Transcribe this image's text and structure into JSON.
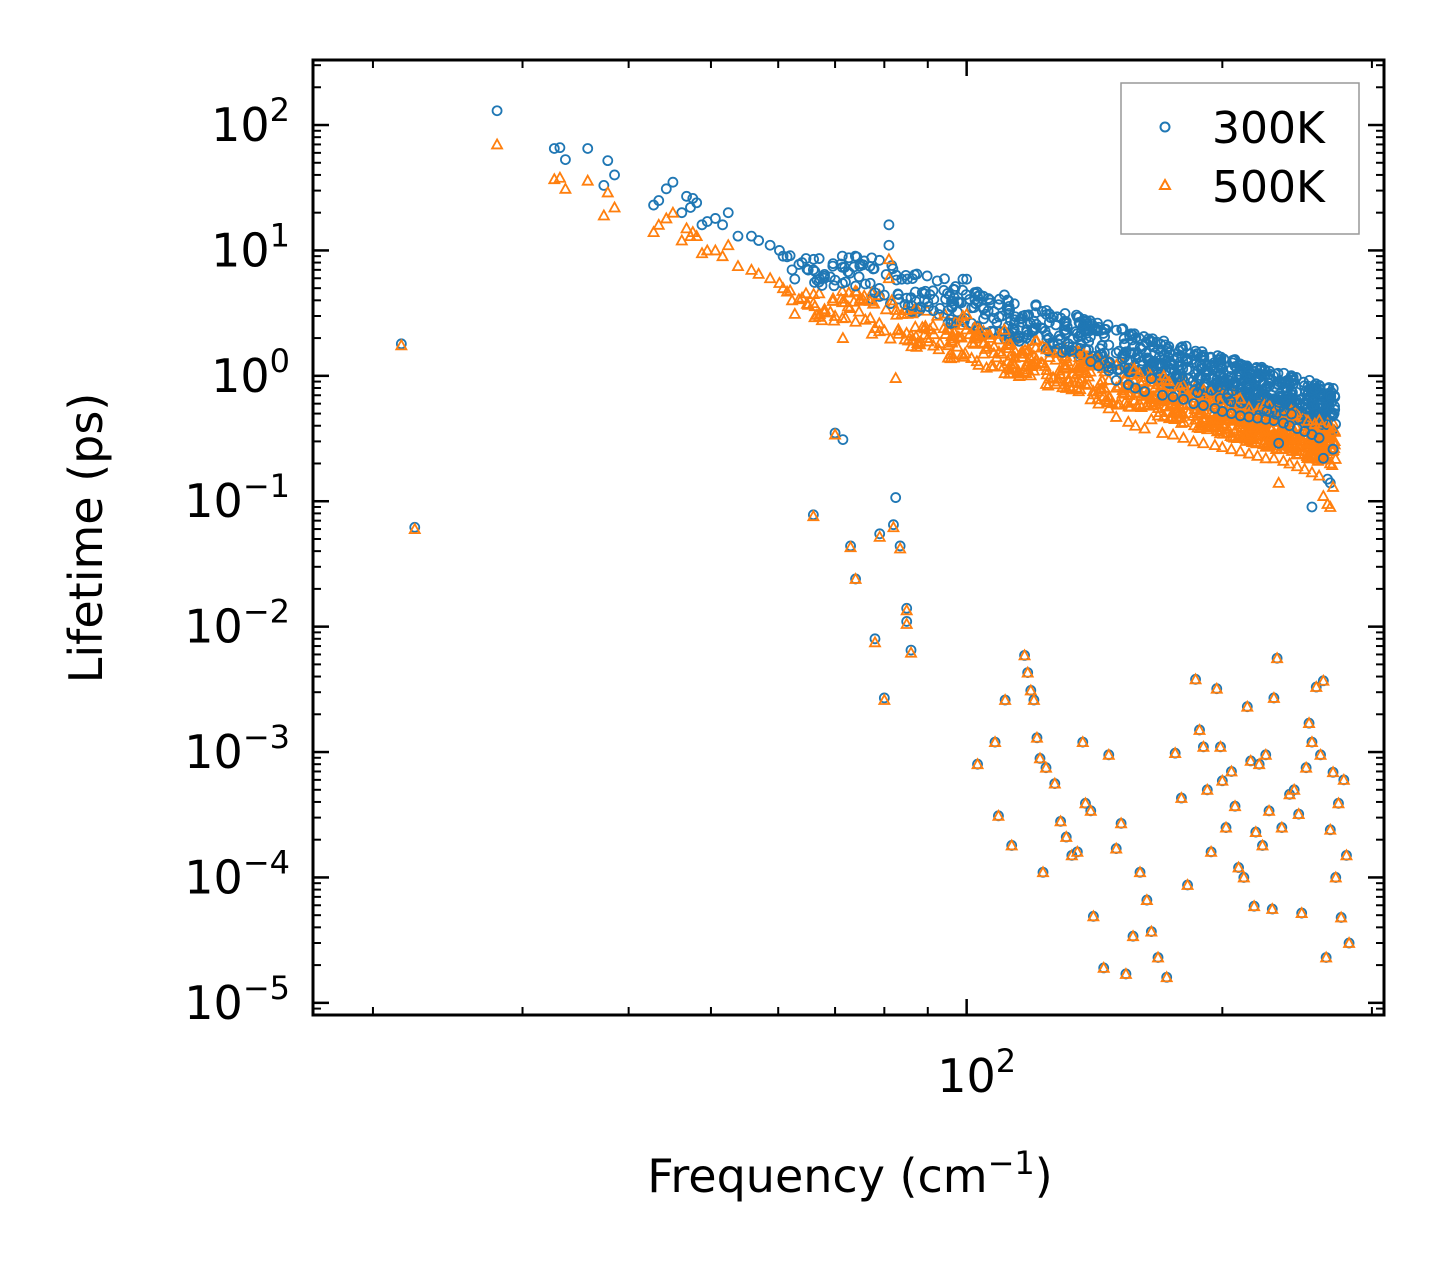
{
  "chart_data": {
    "type": "scatter",
    "xscale": "log",
    "yscale": "log",
    "xlabel": "Frequency (cm",
    "xlabel_sup": "−1",
    "xlabel_tail": ")",
    "ylabel": "Lifetime (ps)",
    "xlim": [
      17,
      310
    ],
    "ylim": [
      8e-06,
      330
    ],
    "x_major_ticks": [
      {
        "base": "10",
        "exp": "2",
        "value": 100
      }
    ],
    "y_major_ticks": [
      {
        "base": "10",
        "exp": "2",
        "value": 100
      },
      {
        "base": "10",
        "exp": "1",
        "value": 10
      },
      {
        "base": "10",
        "exp": "0",
        "value": 1
      },
      {
        "base": "10",
        "exp": "−1",
        "value": 0.1
      },
      {
        "base": "10",
        "exp": "−2",
        "value": 0.01
      },
      {
        "base": "10",
        "exp": "−3",
        "value": 0.001
      },
      {
        "base": "10",
        "exp": "−4",
        "value": 0.0001
      },
      {
        "base": "10",
        "exp": "−5",
        "value": 1e-05
      }
    ],
    "legend_position": "top-right",
    "series": [
      {
        "name": "300K",
        "marker": "open-circle",
        "color": "#1f77b4",
        "points": [
          [
            21.6,
            1.8
          ],
          [
            22.4,
            0.062
          ],
          [
            28.0,
            130
          ],
          [
            32.7,
            65
          ],
          [
            33.2,
            66
          ],
          [
            33.7,
            53
          ],
          [
            35.8,
            65
          ],
          [
            37.4,
            33
          ],
          [
            37.8,
            52
          ],
          [
            38.5,
            40
          ],
          [
            42.8,
            23
          ],
          [
            43.4,
            25
          ],
          [
            44.3,
            31
          ],
          [
            45.1,
            35
          ],
          [
            46.2,
            20
          ],
          [
            46.8,
            27
          ],
          [
            47.3,
            22
          ],
          [
            47.6,
            26
          ],
          [
            48.1,
            24
          ],
          [
            48.8,
            16
          ],
          [
            49.5,
            17
          ],
          [
            50.6,
            18
          ],
          [
            51.6,
            16
          ],
          [
            52.4,
            20
          ],
          [
            53.8,
            13
          ],
          [
            55.8,
            13
          ],
          [
            56.9,
            12
          ],
          [
            58.7,
            11
          ],
          [
            60.2,
            10
          ],
          [
            60.8,
            9
          ],
          [
            62.3,
            7
          ],
          [
            64.0,
            8
          ],
          [
            66.0,
            7
          ],
          [
            68.0,
            6
          ],
          [
            70.0,
            5.8
          ],
          [
            72.0,
            5.6
          ],
          [
            74.0,
            5.2
          ],
          [
            76.0,
            5.4
          ],
          [
            78.0,
            4.6
          ],
          [
            80.0,
            4.4
          ],
          [
            81.0,
            16
          ],
          [
            81.0,
            11
          ],
          [
            83.0,
            4.5
          ],
          [
            86.0,
            4.2
          ],
          [
            90.0,
            3.9
          ],
          [
            94.0,
            4.8
          ],
          [
            96.0,
            3.6
          ],
          [
            99.0,
            5.9
          ],
          [
            100.0,
            5.9
          ],
          [
            102.0,
            3.5
          ],
          [
            103.0,
            4.3
          ],
          [
            106.0,
            3.3
          ],
          [
            110.0,
            3.0
          ],
          [
            114.0,
            2.8
          ],
          [
            118.0,
            2.6
          ],
          [
            120.0,
            2.3
          ],
          [
            125.0,
            2.0
          ],
          [
            128.0,
            1.8
          ],
          [
            131.0,
            1.6
          ],
          [
            133.0,
            1.6
          ],
          [
            136.0,
            2.6
          ],
          [
            140.0,
            1.3
          ],
          [
            143.0,
            1.2
          ],
          [
            147.0,
            1.1
          ],
          [
            150.0,
            0.92
          ],
          [
            155.0,
            0.85
          ],
          [
            158.0,
            0.8
          ],
          [
            162.0,
            0.75
          ],
          [
            165.0,
            0.95
          ],
          [
            170.0,
            0.7
          ],
          [
            175.0,
            0.68
          ],
          [
            178.0,
            0.98
          ],
          [
            180.0,
            0.65
          ],
          [
            185.0,
            0.6
          ],
          [
            190.0,
            0.58
          ],
          [
            196.0,
            0.55
          ],
          [
            200.0,
            0.52
          ],
          [
            205.0,
            0.5
          ],
          [
            210.0,
            0.48
          ],
          [
            215.0,
            0.47
          ],
          [
            220.0,
            0.46
          ],
          [
            225.0,
            0.45
          ],
          [
            230.0,
            0.44
          ],
          [
            236.0,
            0.42
          ],
          [
            240.0,
            0.4
          ],
          [
            245.0,
            0.38
          ],
          [
            250.0,
            0.36
          ],
          [
            255.0,
            0.34
          ],
          [
            260.0,
            0.32
          ],
          [
            263.0,
            0.22
          ],
          [
            266.0,
            0.15
          ],
          [
            268.0,
            0.14
          ],
          [
            270.0,
            0.26
          ],
          [
            255.0,
            0.09
          ],
          [
            233.0,
            0.29
          ],
          [
            70.0,
            0.35
          ],
          [
            71.5,
            0.31
          ],
          [
            66.0,
            0.078
          ],
          [
            73.0,
            0.044
          ],
          [
            74.0,
            0.024
          ],
          [
            78.0,
            0.008
          ],
          [
            79.0,
            0.055
          ],
          [
            80.0,
            0.0027
          ],
          [
            82.0,
            0.065
          ],
          [
            82.5,
            0.107
          ],
          [
            83.5,
            0.044
          ],
          [
            85.0,
            0.014
          ],
          [
            85.0,
            0.011
          ],
          [
            86.0,
            0.0065
          ]
        ]
      },
      {
        "name": "500K",
        "marker": "open-triangle",
        "color": "#ff7f0e",
        "points": [
          [
            21.6,
            1.75
          ],
          [
            22.4,
            0.06
          ],
          [
            28.0,
            70
          ],
          [
            32.7,
            37
          ],
          [
            33.2,
            38
          ],
          [
            33.7,
            31
          ],
          [
            35.8,
            36
          ],
          [
            37.4,
            19
          ],
          [
            37.8,
            29
          ],
          [
            38.5,
            22
          ],
          [
            42.8,
            14
          ],
          [
            43.4,
            16
          ],
          [
            44.3,
            18
          ],
          [
            45.1,
            20
          ],
          [
            46.2,
            12
          ],
          [
            46.8,
            15
          ],
          [
            47.3,
            13
          ],
          [
            47.6,
            14
          ],
          [
            48.1,
            13
          ],
          [
            48.8,
            9.5
          ],
          [
            49.5,
            10
          ],
          [
            50.6,
            10
          ],
          [
            51.6,
            9
          ],
          [
            52.4,
            11
          ],
          [
            53.8,
            7.5
          ],
          [
            55.8,
            7
          ],
          [
            56.9,
            6.5
          ],
          [
            58.7,
            6
          ],
          [
            60.2,
            5.5
          ],
          [
            60.8,
            5
          ],
          [
            62.3,
            4
          ],
          [
            64.0,
            4.2
          ],
          [
            66.0,
            3.8
          ],
          [
            68.0,
            3.2
          ],
          [
            70.0,
            3.0
          ],
          [
            72.0,
            2.9
          ],
          [
            74.0,
            2.7
          ],
          [
            76.0,
            2.8
          ],
          [
            78.0,
            2.4
          ],
          [
            80.0,
            2.3
          ],
          [
            81.0,
            8.5
          ],
          [
            81.0,
            6
          ],
          [
            83.0,
            2.3
          ],
          [
            86.0,
            2.1
          ],
          [
            90.0,
            2.0
          ],
          [
            94.0,
            2.4
          ],
          [
            96.0,
            1.9
          ],
          [
            99.0,
            3.0
          ],
          [
            100.0,
            3.1
          ],
          [
            102.0,
            1.8
          ],
          [
            103.0,
            2.2
          ],
          [
            106.0,
            1.7
          ],
          [
            110.0,
            1.5
          ],
          [
            114.0,
            1.4
          ],
          [
            118.0,
            1.3
          ],
          [
            120.0,
            1.1
          ],
          [
            125.0,
            0.95
          ],
          [
            128.0,
            0.9
          ],
          [
            131.0,
            0.8
          ],
          [
            133.0,
            0.78
          ],
          [
            136.0,
            1.2
          ],
          [
            140.0,
            0.65
          ],
          [
            143.0,
            0.6
          ],
          [
            147.0,
            0.55
          ],
          [
            150.0,
            0.47
          ],
          [
            155.0,
            0.43
          ],
          [
            158.0,
            0.4
          ],
          [
            162.0,
            0.38
          ],
          [
            165.0,
            0.45
          ],
          [
            170.0,
            0.35
          ],
          [
            175.0,
            0.34
          ],
          [
            178.0,
            0.46
          ],
          [
            180.0,
            0.32
          ],
          [
            185.0,
            0.3
          ],
          [
            190.0,
            0.29
          ],
          [
            196.0,
            0.28
          ],
          [
            200.0,
            0.27
          ],
          [
            205.0,
            0.26
          ],
          [
            210.0,
            0.25
          ],
          [
            215.0,
            0.24
          ],
          [
            220.0,
            0.23
          ],
          [
            225.0,
            0.22
          ],
          [
            230.0,
            0.22
          ],
          [
            236.0,
            0.21
          ],
          [
            240.0,
            0.2
          ],
          [
            245.0,
            0.19
          ],
          [
            250.0,
            0.18
          ],
          [
            255.0,
            0.17
          ],
          [
            260.0,
            0.16
          ],
          [
            263.0,
            0.11
          ],
          [
            266.0,
            0.095
          ],
          [
            268.0,
            0.09
          ],
          [
            270.0,
            0.13
          ],
          [
            233.0,
            0.14
          ],
          [
            70.0,
            0.34
          ],
          [
            71.5,
            2.0
          ],
          [
            66.0,
            0.076
          ],
          [
            73.0,
            0.043
          ],
          [
            74.0,
            0.024
          ],
          [
            78.0,
            0.0075
          ],
          [
            79.0,
            0.052
          ],
          [
            80.0,
            0.0026
          ],
          [
            82.0,
            0.062
          ],
          [
            82.5,
            0.96
          ],
          [
            83.5,
            0.042
          ],
          [
            85.0,
            0.0135
          ],
          [
            85.0,
            0.0105
          ],
          [
            86.0,
            0.0062
          ]
        ]
      }
    ],
    "scatter_low_mode_points": [
      [
        103,
        0.0008
      ],
      [
        108,
        0.0012
      ],
      [
        109,
        0.00031
      ],
      [
        111,
        0.0026
      ],
      [
        113,
        0.00018
      ],
      [
        117,
        0.0059
      ],
      [
        118,
        0.0043
      ],
      [
        119,
        0.0031
      ],
      [
        120,
        0.0026
      ],
      [
        121,
        0.0013
      ],
      [
        122,
        0.00089
      ],
      [
        123,
        0.00011
      ],
      [
        124,
        0.00075
      ],
      [
        127,
        0.00056
      ],
      [
        129,
        0.00028
      ],
      [
        131,
        0.00021
      ],
      [
        133,
        0.00015
      ],
      [
        135,
        0.00016
      ],
      [
        137,
        0.0012
      ],
      [
        138,
        0.00039
      ],
      [
        140,
        0.00034
      ],
      [
        141,
        4.9e-05
      ],
      [
        145,
        1.9e-05
      ],
      [
        147,
        0.00095
      ],
      [
        150,
        0.00017
      ],
      [
        152,
        0.00027
      ],
      [
        154,
        1.7e-05
      ],
      [
        157,
        3.4e-05
      ],
      [
        160,
        0.00011
      ],
      [
        163,
        6.6e-05
      ],
      [
        165,
        3.7e-05
      ],
      [
        168,
        2.3e-05
      ],
      [
        172,
        1.6e-05
      ],
      [
        176,
        0.00098
      ],
      [
        179,
        0.00043
      ],
      [
        182,
        8.7e-05
      ],
      [
        186,
        0.0038
      ],
      [
        188,
        0.0015
      ],
      [
        190,
        0.0011
      ],
      [
        192,
        0.0005
      ],
      [
        194,
        0.00016
      ],
      [
        197,
        0.0032
      ],
      [
        199,
        0.0011
      ],
      [
        200,
        0.00059
      ],
      [
        202,
        0.00025
      ],
      [
        205,
        0.0007
      ],
      [
        207,
        0.00037
      ],
      [
        209,
        0.00012
      ],
      [
        212,
        0.0001
      ],
      [
        214,
        0.0023
      ],
      [
        216,
        0.00085
      ],
      [
        218,
        5.9e-05
      ],
      [
        219,
        0.00023
      ],
      [
        221,
        0.0008
      ],
      [
        223,
        0.00018
      ],
      [
        225,
        0.00095
      ],
      [
        227,
        0.00034
      ],
      [
        229,
        5.6e-05
      ],
      [
        230,
        0.0027
      ],
      [
        232,
        0.0056
      ],
      [
        235,
        0.00025
      ],
      [
        240,
        0.00046
      ],
      [
        243,
        0.0005
      ],
      [
        246,
        0.00032
      ],
      [
        248,
        5.2e-05
      ],
      [
        251,
        0.00075
      ],
      [
        253,
        0.0017
      ],
      [
        255,
        0.0012
      ],
      [
        258,
        0.0033
      ],
      [
        261,
        0.00095
      ],
      [
        263,
        0.0037
      ],
      [
        265,
        2.3e-05
      ],
      [
        268,
        0.00024
      ],
      [
        270,
        0.00069
      ],
      [
        272,
        0.0001
      ],
      [
        274,
        0.00039
      ],
      [
        276,
        4.8e-05
      ],
      [
        278,
        0.0006
      ],
      [
        280,
        0.00015
      ],
      [
        282,
        3e-05
      ]
    ]
  }
}
